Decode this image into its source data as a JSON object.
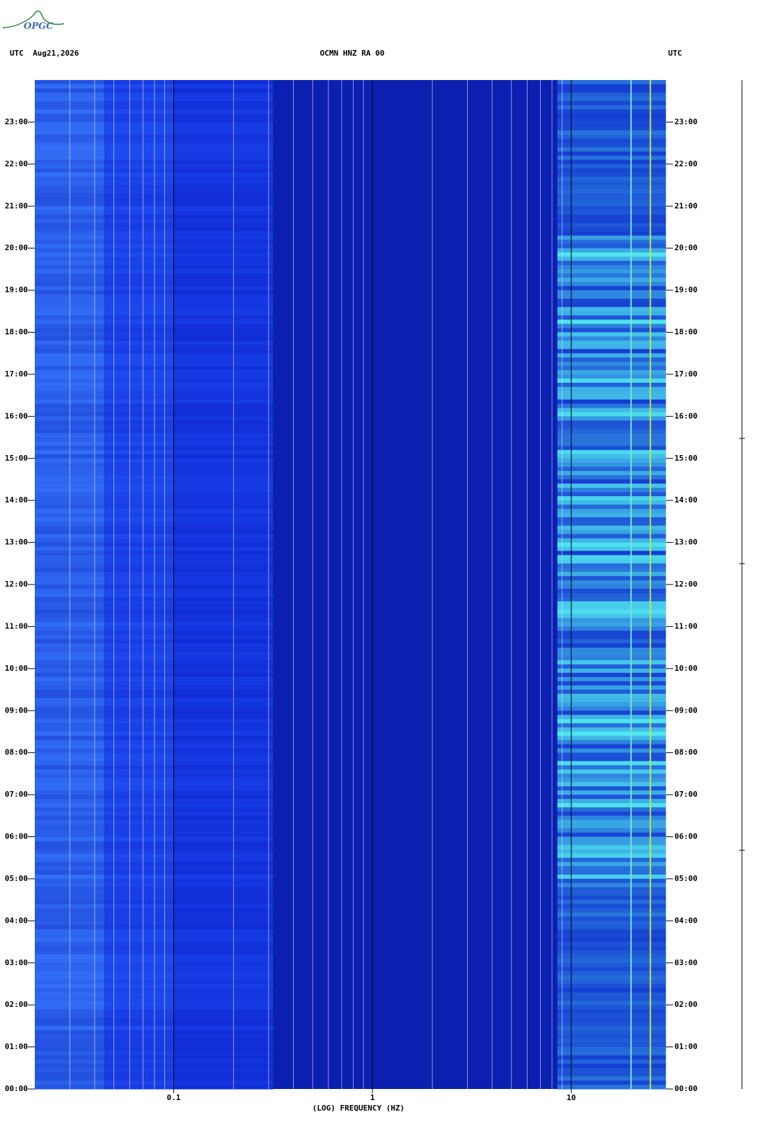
{
  "header": {
    "logo": "OPGC"
  },
  "chart_data": {
    "type": "spectrogram",
    "title": "OCMN HNZ RA 00",
    "left_label": "UTC  Aug21,2026",
    "right_label": "UTC",
    "xlabel": "(LOG) FREQUENCY (HZ)",
    "xscale": "log",
    "xlim": [
      0.02,
      30
    ],
    "xticks": [
      0.1,
      1,
      10
    ],
    "xminorticks": [
      0.03,
      0.04,
      0.05,
      0.06,
      0.07,
      0.08,
      0.09,
      0.2,
      0.3,
      0.4,
      0.5,
      0.6,
      0.7,
      0.8,
      0.9,
      2,
      3,
      4,
      5,
      6,
      7,
      8,
      9,
      20,
      30
    ],
    "ylim": [
      0,
      24
    ],
    "yticks": [
      {
        "value": 0,
        "label": "00:00"
      },
      {
        "value": 1,
        "label": "01:00"
      },
      {
        "value": 2,
        "label": "02:00"
      },
      {
        "value": 3,
        "label": "03:00"
      },
      {
        "value": 4,
        "label": "04:00"
      },
      {
        "value": 5,
        "label": "05:00"
      },
      {
        "value": 6,
        "label": "06:00"
      },
      {
        "value": 7,
        "label": "07:00"
      },
      {
        "value": 8,
        "label": "08:00"
      },
      {
        "value": 9,
        "label": "09:00"
      },
      {
        "value": 10,
        "label": "10:00"
      },
      {
        "value": 11,
        "label": "11:00"
      },
      {
        "value": 12,
        "label": "12:00"
      },
      {
        "value": 13,
        "label": "13:00"
      },
      {
        "value": 14,
        "label": "14:00"
      },
      {
        "value": 15,
        "label": "15:00"
      },
      {
        "value": 16,
        "label": "16:00"
      },
      {
        "value": 17,
        "label": "17:00"
      },
      {
        "value": 18,
        "label": "18:00"
      },
      {
        "value": 19,
        "label": "19:00"
      },
      {
        "value": 20,
        "label": "20:00"
      },
      {
        "value": 21,
        "label": "21:00"
      },
      {
        "value": 22,
        "label": "22:00"
      },
      {
        "value": 23,
        "label": "23:00"
      }
    ]
  }
}
